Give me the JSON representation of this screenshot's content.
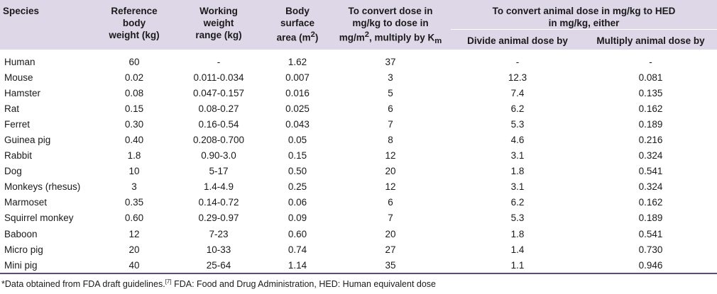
{
  "headers": {
    "species": "Species",
    "ref_weight": [
      "Reference",
      "body",
      "weight (kg)"
    ],
    "working_weight": [
      "Working",
      "weight",
      "range (kg)"
    ],
    "bsa_pre": [
      "Body",
      "surface",
      "area (m"
    ],
    "bsa_sup": "2",
    "bsa_post": ")",
    "km_lines": [
      "To convert dose in",
      "mg/kg to dose in"
    ],
    "km_line3_a": "mg/m",
    "km_line3_sup": "2",
    "km_line3_b": ", multiply by K",
    "km_line3_sub": "m",
    "hed_group": [
      "To convert animal dose in mg/kg to HED",
      "in mg/kg, either"
    ],
    "divide": "Divide animal dose by",
    "multiply": "Multiply animal dose by"
  },
  "rows": [
    {
      "species": "Human",
      "ref": "60",
      "range": "-",
      "bsa": "1.62",
      "km": "37",
      "divide": "-",
      "multiply": "-"
    },
    {
      "species": "Mouse",
      "ref": "0.02",
      "range": "0.011-0.034",
      "bsa": "0.007",
      "km": "3",
      "divide": "12.3",
      "multiply": "0.081"
    },
    {
      "species": "Hamster",
      "ref": "0.08",
      "range": "0.047-0.157",
      "bsa": "0.016",
      "km": "5",
      "divide": "7.4",
      "multiply": "0.135"
    },
    {
      "species": "Rat",
      "ref": "0.15",
      "range": "0.08-0.27",
      "bsa": "0.025",
      "km": "6",
      "divide": "6.2",
      "multiply": "0.162"
    },
    {
      "species": "Ferret",
      "ref": "0.30",
      "range": "0.16-0.54",
      "bsa": "0.043",
      "km": "7",
      "divide": "5.3",
      "multiply": "0.189"
    },
    {
      "species": "Guinea pig",
      "ref": "0.40",
      "range": "0.208-0.700",
      "bsa": "0.05",
      "km": "8",
      "divide": "4.6",
      "multiply": "0.216"
    },
    {
      "species": "Rabbit",
      "ref": "1.8",
      "range": "0.90-3.0",
      "bsa": "0.15",
      "km": "12",
      "divide": "3.1",
      "multiply": "0.324"
    },
    {
      "species": "Dog",
      "ref": "10",
      "range": "5-17",
      "bsa": "0.50",
      "km": "20",
      "divide": "1.8",
      "multiply": "0.541"
    },
    {
      "species": "Monkeys (rhesus)",
      "ref": "3",
      "range": "1.4-4.9",
      "bsa": "0.25",
      "km": "12",
      "divide": "3.1",
      "multiply": "0.324"
    },
    {
      "species": "Marmoset",
      "ref": "0.35",
      "range": "0.14-0.72",
      "bsa": "0.06",
      "km": "6",
      "divide": "6.2",
      "multiply": "0.162"
    },
    {
      "species": "Squirrel monkey",
      "ref": "0.60",
      "range": "0.29-0.97",
      "bsa": "0.09",
      "km": "7",
      "divide": "5.3",
      "multiply": "0.189"
    },
    {
      "species": "Baboon",
      "ref": "12",
      "range": "7-23",
      "bsa": "0.60",
      "km": "20",
      "divide": "1.8",
      "multiply": "0.541"
    },
    {
      "species": "Micro pig",
      "ref": "20",
      "range": "10-33",
      "bsa": "0.74",
      "km": "27",
      "divide": "1.4",
      "multiply": "0.730"
    },
    {
      "species": "Mini pig",
      "ref": "40",
      "range": "25-64",
      "bsa": "1.14",
      "km": "35",
      "divide": "1.1",
      "multiply": "0.946"
    }
  ],
  "footnote": {
    "text_a": "*Data obtained from FDA draft guidelines.",
    "ref": "[7]",
    "text_b": " FDA: Food and Drug Administration, HED: Human equivalent dose"
  }
}
